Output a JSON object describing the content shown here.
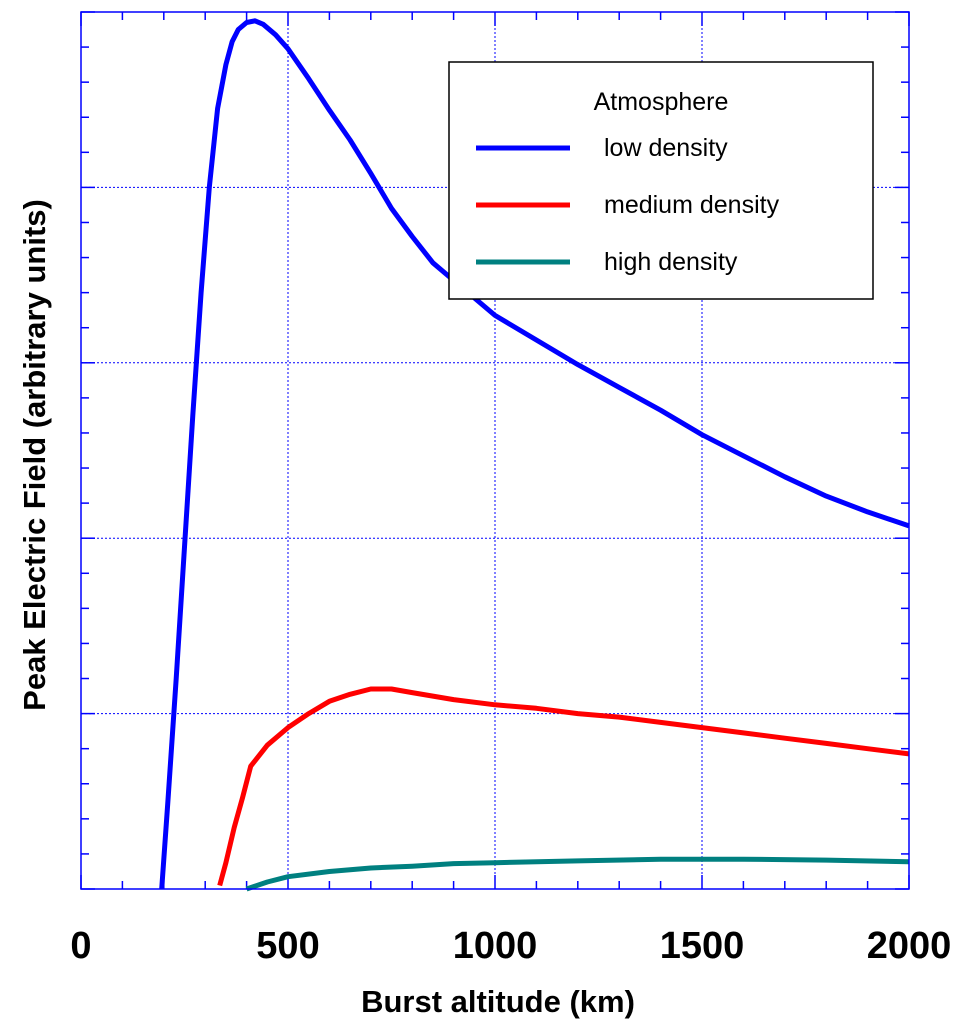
{
  "chart_data": {
    "type": "line",
    "xlabel": "Burst altitude (km)",
    "ylabel": "Peak Electric Field (arbitrary units)",
    "xlim": [
      0,
      2000
    ],
    "ylim": [
      0,
      5
    ],
    "x_ticks": [
      0,
      500,
      1000,
      1500,
      2000
    ],
    "x_tick_labels": [
      "0",
      "500",
      "1000",
      "1500",
      "2000"
    ],
    "y_tick_labels_shown": false,
    "grid": true,
    "legend": {
      "title": "Atmosphere",
      "placement": "top-right"
    },
    "series": [
      {
        "name": "low density",
        "color": "#0000ff",
        "x": [
          195,
          210,
          230,
          250,
          270,
          290,
          310,
          330,
          350,
          365,
          380,
          400,
          420,
          440,
          470,
          500,
          550,
          600,
          650,
          700,
          750,
          800,
          850,
          900,
          950,
          1000,
          1100,
          1200,
          1300,
          1400,
          1500,
          1600,
          1700,
          1800,
          1900,
          2000
        ],
        "y": [
          0.0,
          0.5,
          1.2,
          1.95,
          2.7,
          3.4,
          4.0,
          4.45,
          4.7,
          4.83,
          4.9,
          4.94,
          4.95,
          4.93,
          4.87,
          4.79,
          4.62,
          4.44,
          4.27,
          4.08,
          3.88,
          3.72,
          3.57,
          3.47,
          3.37,
          3.27,
          3.13,
          2.99,
          2.86,
          2.73,
          2.59,
          2.47,
          2.35,
          2.24,
          2.15,
          2.07
        ]
      },
      {
        "name": "medium density",
        "color": "#ff0000",
        "x": [
          335,
          350,
          370,
          390,
          410,
          450,
          500,
          550,
          600,
          650,
          700,
          750,
          800,
          900,
          1000,
          1100,
          1200,
          1300,
          1400,
          1500,
          1600,
          1700,
          1800,
          1900,
          2000
        ],
        "y": [
          0.02,
          0.15,
          0.35,
          0.52,
          0.7,
          0.82,
          0.92,
          1.0,
          1.07,
          1.11,
          1.14,
          1.14,
          1.12,
          1.08,
          1.05,
          1.03,
          1.0,
          0.98,
          0.95,
          0.92,
          0.89,
          0.86,
          0.83,
          0.8,
          0.77
        ]
      },
      {
        "name": "high density",
        "color": "#008080",
        "x": [
          400,
          450,
          500,
          600,
          700,
          800,
          900,
          1000,
          1200,
          1400,
          1600,
          1800,
          2000
        ],
        "y": [
          0.0,
          0.04,
          0.07,
          0.1,
          0.12,
          0.13,
          0.145,
          0.15,
          0.16,
          0.17,
          0.17,
          0.165,
          0.155
        ]
      }
    ]
  }
}
